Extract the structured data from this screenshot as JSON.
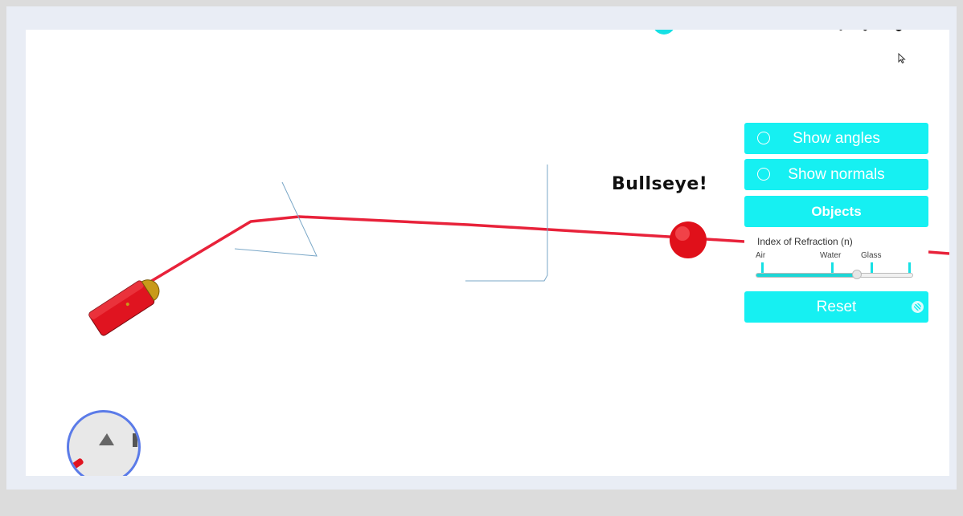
{
  "scene": {
    "status_message": "Bullseye!"
  },
  "controls": {
    "show_angles": {
      "label": "Show angles",
      "checked": false
    },
    "show_normals": {
      "label": "Show normals",
      "checked": false
    },
    "objects": {
      "label": "Objects"
    },
    "refraction": {
      "title": "Index of Refraction (n)",
      "ticks": [
        "Air",
        "Water",
        "Glass"
      ],
      "value_fraction": 0.64
    },
    "reset": {
      "label": "Reset"
    }
  },
  "colors": {
    "accent": "#16f0f2",
    "laser": "#e8223a",
    "target": "#e0101a",
    "minimap_border": "#5b7be8"
  },
  "icons": {
    "radio": "radio-circle-icon",
    "reset": "reset-icon",
    "cursor": "mouse-pointer-icon"
  }
}
